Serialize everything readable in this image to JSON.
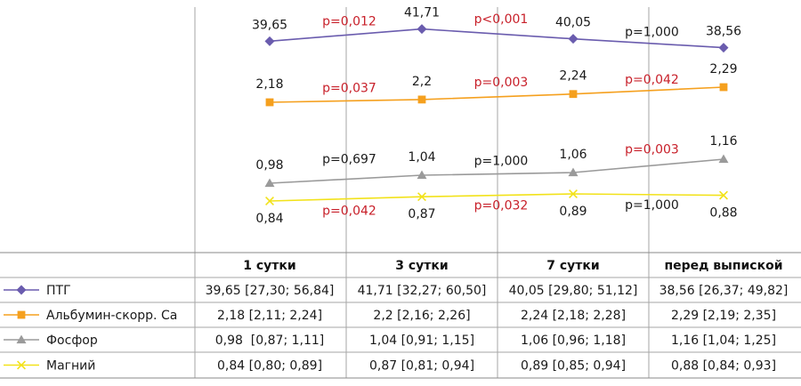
{
  "chart_data": {
    "type": "line",
    "categories": [
      "1 сутки",
      "3 сутки",
      "7 сутки",
      "перед выпиской"
    ],
    "series": [
      {
        "name": "ПТГ",
        "color": "#6a5cae",
        "marker": "diamond",
        "values": [
          39.65,
          41.71,
          40.05,
          38.56
        ],
        "value_labels": [
          "39,65",
          "41,71",
          "40,05",
          "38,56"
        ],
        "p_values": [
          {
            "text": "p=0,012",
            "significant": true
          },
          {
            "text": "p<0,001",
            "significant": true
          },
          {
            "text": "p=1,000",
            "significant": false
          }
        ],
        "table_cells": [
          "39,65 [27,30; 56,84]",
          "41,71 [32,27; 60,50]",
          "40,05 [29,80; 51,12]",
          "38,56 [26,37; 49,82]"
        ]
      },
      {
        "name": "Альбумин-скорр. Ca",
        "color": "#f5a01e",
        "marker": "square",
        "values": [
          2.18,
          2.2,
          2.24,
          2.29
        ],
        "value_labels": [
          "2,18",
          "2,2",
          "2,24",
          "2,29"
        ],
        "p_values": [
          {
            "text": "p=0,037",
            "significant": true
          },
          {
            "text": "p=0,003",
            "significant": true
          },
          {
            "text": "p=0,042",
            "significant": true
          }
        ],
        "table_cells": [
          "2,18 [2,11; 2,24]",
          "2,2 [2,16; 2,26]",
          "2,24 [2,18; 2,28]",
          "2,29 [2,19; 2,35]"
        ]
      },
      {
        "name": "Фосфор",
        "color": "#9a9a9a",
        "marker": "triangle",
        "values": [
          0.98,
          1.04,
          1.06,
          1.16
        ],
        "value_labels": [
          "0,98",
          "1,04",
          "1,06",
          "1,16"
        ],
        "p_values": [
          {
            "text": "p=0,697",
            "significant": false
          },
          {
            "text": "p=1,000",
            "significant": false
          },
          {
            "text": "p=0,003",
            "significant": true
          }
        ],
        "table_cells": [
          "0,98  [0,87; 1,11]",
          "1,04 [0,91; 1,15]",
          "1,06 [0,96; 1,18]",
          "1,16 [1,04; 1,25]"
        ]
      },
      {
        "name": "Магний",
        "color": "#f2e21a",
        "marker": "x",
        "values": [
          0.84,
          0.87,
          0.89,
          0.88
        ],
        "value_labels": [
          "0,84",
          "0,87",
          "0,89",
          "0,88"
        ],
        "p_values": [
          {
            "text": "p=0,042",
            "significant": true
          },
          {
            "text": "p=0,032",
            "significant": true
          },
          {
            "text": "p=1,000",
            "significant": false
          }
        ],
        "table_cells": [
          "0,84 [0,80; 0,89]",
          "0,87 [0,81; 0,94]",
          "0,89 [0,85; 0,94]",
          "0,88 [0,84; 0,93]"
        ]
      }
    ],
    "grid": "vertical",
    "legend": "data-table"
  }
}
